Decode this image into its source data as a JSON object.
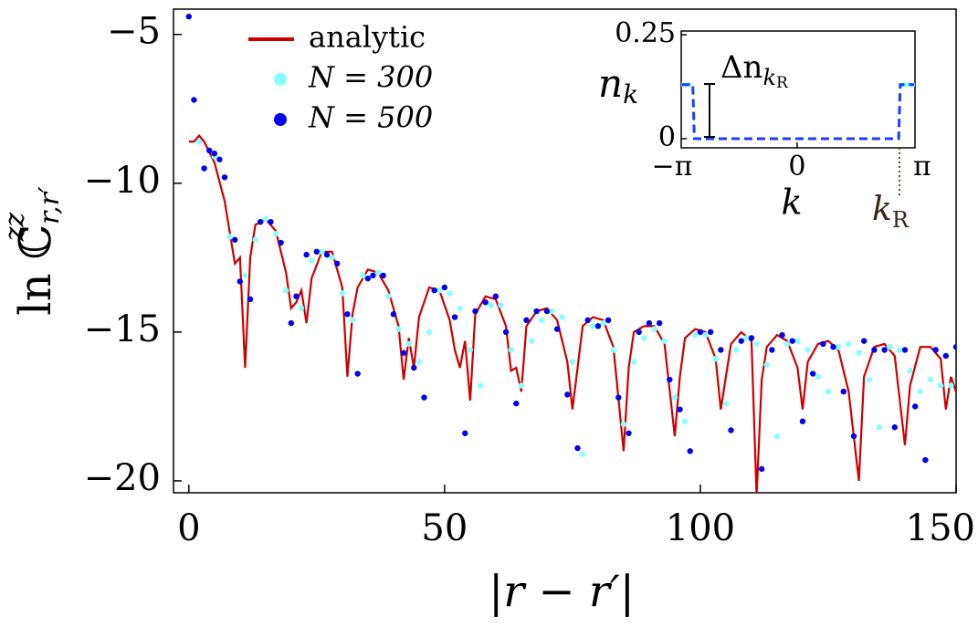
{
  "chart_data": [
    {
      "type": "scatter",
      "x_label": "|r − r′|",
      "y_label": {
        "text": "ln ℂ",
        "sup": "zz",
        "sub": "r,r′"
      },
      "xlim": [
        -3,
        150
      ],
      "ylim": [
        -20.4,
        -4.15
      ],
      "xticks": [
        0,
        50,
        100,
        150
      ],
      "yticks": [
        {
          "value": -5,
          "label": "−5"
        },
        {
          "value": -10,
          "label": "−10"
        },
        {
          "value": -15,
          "label": "−15"
        },
        {
          "value": -20,
          "label": "−20"
        }
      ],
      "legend": "upper left",
      "series": [
        {
          "name": "analytic",
          "kind": "line",
          "color": "#cc0000",
          "x": [
            0,
            1,
            2,
            3,
            5,
            7,
            9,
            10,
            11,
            12,
            13,
            15,
            17,
            19,
            20,
            21,
            22,
            23,
            24,
            26,
            28,
            30,
            31,
            32,
            33,
            35,
            37,
            39,
            41,
            42,
            43,
            44,
            45,
            47,
            49,
            51,
            52,
            53,
            54,
            55,
            56,
            58,
            60,
            62,
            63,
            64,
            65,
            66,
            68,
            70,
            72,
            74,
            75,
            76,
            77,
            79,
            81,
            83,
            85,
            86,
            87,
            89,
            91,
            93,
            95,
            96,
            97,
            99,
            101,
            103,
            104,
            106,
            108,
            110,
            111,
            112,
            113,
            115,
            117,
            119,
            120,
            121,
            123,
            125,
            127,
            129,
            131,
            132,
            134,
            136,
            138,
            140,
            141,
            143,
            145,
            147,
            148,
            149,
            150
          ],
          "values": [
            -8.6,
            -8.6,
            -8.4,
            -8.6,
            -9.3,
            -10.6,
            -12.7,
            -12.5,
            -16.2,
            -12.5,
            -11.4,
            -11.2,
            -11.6,
            -13.0,
            -14.2,
            -14.0,
            -13.6,
            -14.7,
            -13.2,
            -12.3,
            -12.3,
            -13.5,
            -16.5,
            -14.4,
            -13.5,
            -12.9,
            -13.0,
            -13.6,
            -14.8,
            -16.6,
            -15.2,
            -16.2,
            -14.5,
            -13.5,
            -13.6,
            -14.6,
            -15.6,
            -16.2,
            -15.3,
            -17.3,
            -14.4,
            -13.8,
            -13.9,
            -14.8,
            -16.3,
            -16.2,
            -17.0,
            -14.8,
            -14.3,
            -14.2,
            -14.6,
            -16.0,
            -17.6,
            -16.2,
            -14.8,
            -14.5,
            -14.6,
            -15.5,
            -19.0,
            -16.2,
            -15.0,
            -14.8,
            -14.8,
            -15.4,
            -18.5,
            -16.5,
            -15.2,
            -14.9,
            -15.0,
            -15.9,
            -17.6,
            -15.4,
            -15.0,
            -15.3,
            -20.5,
            -16.6,
            -15.5,
            -15.1,
            -15.3,
            -16.2,
            -17.6,
            -16.0,
            -15.4,
            -15.3,
            -15.6,
            -17.0,
            -20.0,
            -16.5,
            -15.5,
            -15.4,
            -15.8,
            -18.8,
            -16.8,
            -15.5,
            -15.5,
            -15.9,
            -17.6,
            -16.5,
            -17.0
          ]
        },
        {
          "name": "N = 300",
          "kind": "scatter",
          "color": "#88ffff",
          "x": [
            2,
            5,
            8,
            11,
            13,
            15,
            17,
            19,
            22,
            24,
            26,
            28,
            30,
            32,
            34,
            37,
            39,
            41,
            43,
            45,
            47,
            49,
            51,
            53,
            55,
            57,
            59,
            61,
            63,
            65,
            67,
            69,
            71,
            73,
            75,
            77,
            79,
            81,
            83,
            85,
            87,
            89,
            91,
            93,
            95,
            97,
            99,
            101,
            103,
            105,
            107,
            109,
            111,
            113,
            115,
            117,
            119,
            121,
            123,
            125,
            127,
            129,
            131,
            133,
            135,
            137,
            139,
            141,
            143,
            145,
            147,
            149
          ],
          "values": [
            -8.6,
            -9.1,
            -11.8,
            -13.1,
            -11.9,
            -11.2,
            -11.7,
            -13.6,
            -14.2,
            -12.6,
            -12.3,
            -12.5,
            -13.7,
            -14.6,
            -13.1,
            -13.0,
            -13.8,
            -14.9,
            -15.4,
            -16.0,
            -15.0,
            -13.6,
            -13.7,
            -14.2,
            -15.6,
            -16.8,
            -14.1,
            -14.1,
            -15.6,
            -16.8,
            -15.3,
            -14.6,
            -14.3,
            -14.5,
            -16.0,
            -19.1,
            -14.8,
            -14.7,
            -15.6,
            -18.1,
            -16.0,
            -15.2,
            -14.9,
            -15.3,
            -17.2,
            -18.0,
            -15.1,
            -15.1,
            -15.9,
            -17.4,
            -15.6,
            -15.2,
            -15.4,
            -16.1,
            -18.5,
            -15.4,
            -15.3,
            -15.6,
            -16.5,
            -17.0,
            -15.5,
            -15.4,
            -15.7,
            -16.6,
            -18.2,
            -15.5,
            -15.6,
            -16.3,
            -17.0,
            -16.6,
            -16.8,
            -16.8
          ]
        },
        {
          "name": "N = 500",
          "kind": "scatter",
          "color": "#0000ee",
          "x": [
            0,
            1,
            3,
            4,
            5,
            6,
            7,
            9,
            10,
            12,
            14,
            16,
            18,
            20,
            21,
            23,
            25,
            27,
            29,
            31,
            33,
            35,
            36,
            38,
            40,
            42,
            44,
            46,
            48,
            50,
            52,
            54,
            56,
            58,
            60,
            62,
            64,
            66,
            68,
            70,
            72,
            74,
            76,
            78,
            80,
            82,
            84,
            86,
            88,
            90,
            92,
            94,
            96,
            98,
            100,
            102,
            104,
            106,
            108,
            110,
            112,
            114,
            116,
            118,
            120,
            122,
            124,
            126,
            128,
            130,
            132,
            134,
            136,
            138,
            140,
            142,
            144,
            146,
            148,
            150
          ],
          "values": [
            -4.4,
            -7.2,
            -9.5,
            -8.9,
            -9.0,
            -9.2,
            -9.8,
            -11.9,
            -13.3,
            -13.9,
            -11.3,
            -11.3,
            -12.0,
            -14.7,
            -13.8,
            -12.4,
            -12.3,
            -12.4,
            -12.7,
            -14.4,
            -16.4,
            -13.2,
            -13.1,
            -13.1,
            -14.4,
            -15.7,
            -16.2,
            -17.2,
            -13.6,
            -13.5,
            -14.5,
            -18.4,
            -14.3,
            -14.0,
            -13.8,
            -15.0,
            -17.4,
            -14.6,
            -14.3,
            -14.3,
            -14.9,
            -17.1,
            -18.9,
            -14.6,
            -14.8,
            -14.6,
            -17.2,
            -18.4,
            -15.0,
            -14.7,
            -14.7,
            -16.6,
            -17.6,
            -19.0,
            -15.0,
            -15.0,
            -15.6,
            -18.3,
            -15.3,
            -15.2,
            -19.6,
            -15.6,
            -15.1,
            -15.3,
            -18.0,
            -16.4,
            -15.4,
            -15.5,
            -17.0,
            -18.5,
            -15.3,
            -15.6,
            -15.6,
            -18.2,
            -15.6,
            -17.5,
            -19.3,
            -15.6,
            -15.8,
            -15.5
          ]
        }
      ]
    },
    {
      "type": "line",
      "x_label": "k",
      "y_label": {
        "text": "n",
        "sub": "k"
      },
      "xlim": [
        -2.91,
        2.96
      ],
      "ylim": [
        -0.022,
        0.259
      ],
      "xticks": [
        {
          "value": -3.14159,
          "label": "−π"
        },
        0,
        {
          "value": 3.14159,
          "label": "π"
        }
      ],
      "yticks": [
        0,
        0.25
      ],
      "k_R": 2.57,
      "annotations": [
        {
          "text": "Δn",
          "sub": "k",
          "subsub": "R"
        },
        {
          "text": "k",
          "sub": "R"
        }
      ],
      "series": [
        {
          "kind": "scatter",
          "color": "#88ffff",
          "x": [
            -2.88,
            -2.8,
            -2.72,
            2.66,
            2.75,
            2.84,
            2.92
          ],
          "values": [
            0.13,
            0.13,
            0.13,
            0.13,
            0.13,
            0.13,
            0.13
          ]
        },
        {
          "kind": "dashed",
          "color": "#1a3cff",
          "x": [
            -2.9,
            -2.62,
            -2.58,
            2.55,
            2.59,
            2.94
          ],
          "values": [
            0.13,
            0.13,
            0.0,
            0.0,
            0.13,
            0.13
          ]
        }
      ]
    }
  ]
}
